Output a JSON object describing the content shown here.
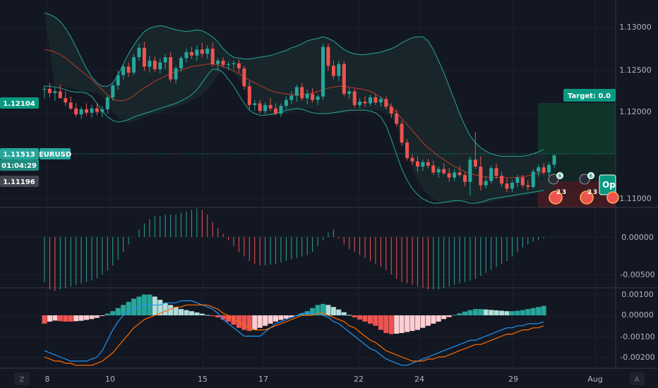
{
  "chart_data": {
    "type": "candlestick",
    "symbol": "EURUSD",
    "price_axis_labels": [
      "1.13000",
      "1.12500",
      "1.12000",
      "1.11000"
    ],
    "macd_histogram_axis_labels": [
      "0.00000",
      "-0.00500"
    ],
    "macd_axis_labels": [
      "0.00100",
      "0.00000",
      "-0.00100",
      "-0.00200"
    ],
    "x_axis_labels": [
      "8",
      "10",
      "15",
      "17",
      "22",
      "24",
      "29",
      "Aug"
    ],
    "corner_labels": {
      "left": "Z",
      "right": "A"
    },
    "price_ylim": [
      1.109,
      1.134
    ],
    "price_tags": {
      "target_level": "1.12104",
      "current_price": "1.11513",
      "countdown": "01:04:29",
      "stop_level": "1.11196"
    },
    "annotations": {
      "target_label": "Target: 0.0",
      "open_label": "Op",
      "event_counts": [
        "6",
        "6",
        "2",
        "3",
        "2",
        "3"
      ]
    },
    "colors": {
      "background": "#131722",
      "up_candle": "#26a69a",
      "down_candle": "#ef5350",
      "band": "#26a69a",
      "band_fill": "#1a2a2e",
      "basis": "#c0392b",
      "macd_line": "#2196f3",
      "signal_line": "#ff6d00",
      "target_tag": "#089981",
      "price_tag": "#26a69a",
      "stop_tag": "#434651"
    },
    "candles_ohlc": [
      [
        1.1228,
        1.1233,
        1.1218,
        1.1229
      ],
      [
        1.1229,
        1.1236,
        1.1219,
        1.1224
      ],
      [
        1.1224,
        1.123,
        1.1215,
        1.1226
      ],
      [
        1.1226,
        1.1234,
        1.1218,
        1.1218
      ],
      [
        1.1218,
        1.1226,
        1.1209,
        1.1213
      ],
      [
        1.1213,
        1.122,
        1.1204,
        1.1206
      ],
      [
        1.1206,
        1.1212,
        1.1196,
        1.1199
      ],
      [
        1.1199,
        1.1208,
        1.1194,
        1.1205
      ],
      [
        1.1205,
        1.1212,
        1.1197,
        1.1201
      ],
      [
        1.1201,
        1.121,
        1.1195,
        1.1206
      ],
      [
        1.1206,
        1.1212,
        1.1198,
        1.1202
      ],
      [
        1.1202,
        1.1209,
        1.1196,
        1.1205
      ],
      [
        1.1205,
        1.1221,
        1.12,
        1.1219
      ],
      [
        1.1219,
        1.1235,
        1.1215,
        1.1233
      ],
      [
        1.1233,
        1.125,
        1.1228,
        1.1245
      ],
      [
        1.1245,
        1.1258,
        1.124,
        1.1255
      ],
      [
        1.1255,
        1.126,
        1.1243,
        1.1248
      ],
      [
        1.1248,
        1.127,
        1.1245,
        1.1266
      ],
      [
        1.1266,
        1.1282,
        1.1262,
        1.1277
      ],
      [
        1.1277,
        1.1284,
        1.125,
        1.1255
      ],
      [
        1.1255,
        1.1268,
        1.1248,
        1.1262
      ],
      [
        1.1262,
        1.1267,
        1.1249,
        1.1252
      ],
      [
        1.1252,
        1.1265,
        1.1247,
        1.126
      ],
      [
        1.126,
        1.127,
        1.1252,
        1.1266
      ],
      [
        1.1266,
        1.1272,
        1.1237,
        1.124
      ],
      [
        1.124,
        1.1256,
        1.1235,
        1.1253
      ],
      [
        1.1253,
        1.1268,
        1.1249,
        1.1265
      ],
      [
        1.1265,
        1.1276,
        1.126,
        1.1272
      ],
      [
        1.1272,
        1.1278,
        1.1264,
        1.1268
      ],
      [
        1.1268,
        1.128,
        1.1262,
        1.1275
      ],
      [
        1.1275,
        1.1283,
        1.1266,
        1.127
      ],
      [
        1.127,
        1.128,
        1.1264,
        1.1276
      ],
      [
        1.1276,
        1.1283,
        1.1255,
        1.1258
      ],
      [
        1.1258,
        1.1265,
        1.125,
        1.1262
      ],
      [
        1.1262,
        1.1266,
        1.1254,
        1.1257
      ],
      [
        1.1257,
        1.1261,
        1.1251,
        1.1258
      ],
      [
        1.1258,
        1.1262,
        1.1252,
        1.1259
      ],
      [
        1.1259,
        1.1263,
        1.1248,
        1.1253
      ],
      [
        1.1253,
        1.1256,
        1.1228,
        1.1232
      ],
      [
        1.1232,
        1.1238,
        1.1205,
        1.121
      ],
      [
        1.121,
        1.1216,
        1.1203,
        1.1212
      ],
      [
        1.1212,
        1.1216,
        1.12,
        1.1203
      ],
      [
        1.1203,
        1.1213,
        1.1199,
        1.121
      ],
      [
        1.121,
        1.1218,
        1.1203,
        1.1206
      ],
      [
        1.1206,
        1.1212,
        1.1198,
        1.12
      ],
      [
        1.12,
        1.1212,
        1.1196,
        1.1209
      ],
      [
        1.1209,
        1.122,
        1.1205,
        1.1216
      ],
      [
        1.1216,
        1.1226,
        1.1211,
        1.1221
      ],
      [
        1.1221,
        1.1234,
        1.1214,
        1.1231
      ],
      [
        1.1231,
        1.1236,
        1.1215,
        1.1218
      ],
      [
        1.1218,
        1.1228,
        1.1211,
        1.1223
      ],
      [
        1.1223,
        1.123,
        1.1213,
        1.1216
      ],
      [
        1.1216,
        1.1222,
        1.121,
        1.122
      ],
      [
        1.122,
        1.1282,
        1.1216,
        1.1278
      ],
      [
        1.1278,
        1.1282,
        1.125,
        1.1256
      ],
      [
        1.1256,
        1.1262,
        1.124,
        1.1244
      ],
      [
        1.1244,
        1.1262,
        1.1238,
        1.1258
      ],
      [
        1.1258,
        1.1261,
        1.122,
        1.1223
      ],
      [
        1.1223,
        1.123,
        1.1217,
        1.1226
      ],
      [
        1.1226,
        1.1229,
        1.1207,
        1.121
      ],
      [
        1.121,
        1.1218,
        1.1206,
        1.1214
      ],
      [
        1.1214,
        1.122,
        1.1208,
        1.1212
      ],
      [
        1.1212,
        1.1222,
        1.1209,
        1.1219
      ],
      [
        1.1219,
        1.1223,
        1.121,
        1.1213
      ],
      [
        1.1213,
        1.122,
        1.1208,
        1.1217
      ],
      [
        1.1217,
        1.122,
        1.1205,
        1.1208
      ],
      [
        1.1208,
        1.1212,
        1.1195,
        1.12
      ],
      [
        1.12,
        1.1205,
        1.1185,
        1.1188
      ],
      [
        1.1188,
        1.1192,
        1.1162,
        1.1166
      ],
      [
        1.1166,
        1.117,
        1.1145,
        1.1148
      ],
      [
        1.1148,
        1.1152,
        1.114,
        1.1144
      ],
      [
        1.1144,
        1.115,
        1.1132,
        1.1138
      ],
      [
        1.1138,
        1.1146,
        1.1133,
        1.1143
      ],
      [
        1.1143,
        1.1147,
        1.1136,
        1.1139
      ],
      [
        1.1139,
        1.1145,
        1.1128,
        1.1131
      ],
      [
        1.1131,
        1.1138,
        1.1125,
        1.1135
      ],
      [
        1.1135,
        1.1142,
        1.1128,
        1.113
      ],
      [
        1.113,
        1.1136,
        1.112,
        1.1125
      ],
      [
        1.1125,
        1.1135,
        1.1121,
        1.1131
      ],
      [
        1.1131,
        1.1139,
        1.1126,
        1.1128
      ],
      [
        1.1128,
        1.1131,
        1.1115,
        1.112
      ],
      [
        1.112,
        1.115,
        1.1104,
        1.1146
      ],
      [
        1.1146,
        1.1178,
        1.1135,
        1.1138
      ],
      [
        1.1138,
        1.115,
        1.111,
        1.1116
      ],
      [
        1.1116,
        1.1126,
        1.1112,
        1.1121
      ],
      [
        1.1121,
        1.1139,
        1.1118,
        1.1136
      ],
      [
        1.1136,
        1.1141,
        1.1124,
        1.1127
      ],
      [
        1.1127,
        1.1132,
        1.1114,
        1.1118
      ],
      [
        1.1118,
        1.1124,
        1.1108,
        1.1112
      ],
      [
        1.1112,
        1.1122,
        1.1108,
        1.1119
      ],
      [
        1.1119,
        1.1128,
        1.1114,
        1.1125
      ],
      [
        1.1125,
        1.1128,
        1.1113,
        1.1116
      ],
      [
        1.1116,
        1.1122,
        1.111,
        1.1114
      ],
      [
        1.1114,
        1.1135,
        1.1112,
        1.1132
      ],
      [
        1.1132,
        1.114,
        1.1126,
        1.1137
      ],
      [
        1.1137,
        1.1142,
        1.1128,
        1.1131
      ],
      [
        1.1131,
        1.1143,
        1.1127,
        1.114
      ],
      [
        1.114,
        1.1152,
        1.1136,
        1.1151
      ]
    ],
    "bollinger_upper": [
      1.1318,
      1.1316,
      1.1313,
      1.1308,
      1.13,
      1.129,
      1.1278,
      1.1265,
      1.1253,
      1.1243,
      1.1236,
      1.1232,
      1.1232,
      1.1236,
      1.1245,
      1.1258,
      1.127,
      1.128,
      1.1289,
      1.1296,
      1.13,
      1.1302,
      1.1303,
      1.1302,
      1.13,
      1.1298,
      1.1297,
      1.1296,
      1.1297,
      1.1298,
      1.1297,
      1.1294,
      1.129,
      1.1284,
      1.1276,
      1.127,
      1.1266,
      1.1265,
      1.1264,
      1.1264,
      1.1265,
      1.1266,
      1.1267,
      1.1268,
      1.127,
      1.1272,
      1.1274,
      1.1277,
      1.1279,
      1.1282,
      1.1285,
      1.1287,
      1.1288,
      1.129,
      1.1288,
      1.1285,
      1.128,
      1.1275,
      1.1272,
      1.127,
      1.1269,
      1.1269,
      1.127,
      1.1271,
      1.1272,
      1.1274,
      1.1276,
      1.1279,
      1.1283,
      1.1286,
      1.1289,
      1.129,
      1.129,
      1.1285,
      1.1275,
      1.1262,
      1.1248,
      1.1232,
      1.1216,
      1.12,
      1.1186,
      1.1174,
      1.1166,
      1.116,
      1.1156,
      1.1153,
      1.1151,
      1.115,
      1.115,
      1.115,
      1.115,
      1.115,
      1.1151,
      1.1153,
      1.1155,
      1.1158
    ],
    "bollinger_basis": [
      1.1275,
      1.1274,
      1.1272,
      1.1269,
      1.1265,
      1.126,
      1.1255,
      1.125,
      1.1245,
      1.124,
      1.1234,
      1.1228,
      1.1222,
      1.1217,
      1.1215,
      1.1215,
      1.1217,
      1.1221,
      1.1226,
      1.123,
      1.1234,
      1.1238,
      1.1241,
      1.1244,
      1.1247,
      1.1249,
      1.1251,
      1.1253,
      1.1255,
      1.1256,
      1.1257,
      1.1258,
      1.1258,
      1.1257,
      1.1255,
      1.1253,
      1.125,
      1.1247,
      1.1243,
      1.1239,
      1.1236,
      1.1233,
      1.123,
      1.1227,
      1.1225,
      1.1224,
      1.1223,
      1.1222,
      1.1222,
      1.1222,
      1.1223,
      1.1224,
      1.1226,
      1.1228,
      1.123,
      1.1231,
      1.1232,
      1.1232,
      1.1231,
      1.123,
      1.1229,
      1.1228,
      1.1226,
      1.1223,
      1.1219,
      1.1214,
      1.1208,
      1.1201,
      1.1194,
      1.1187,
      1.118,
      1.1173,
      1.1166,
      1.116,
      1.1155,
      1.115,
      1.1146,
      1.1142,
      1.1138,
      1.1135,
      1.1132,
      1.113,
      1.1128,
      1.1127,
      1.1126,
      1.1125,
      1.1125,
      1.1125,
      1.1125,
      1.1125,
      1.1125,
      1.1126,
      1.1127,
      1.1129,
      1.113,
      1.1132
    ],
    "bollinger_lower": [
      1.1232,
      1.1232,
      1.1231,
      1.123,
      1.1228,
      1.1226,
      1.1225,
      1.1225,
      1.1224,
      1.122,
      1.1212,
      1.1203,
      1.1196,
      1.1192,
      1.119,
      1.1191,
      1.1193,
      1.1196,
      1.1198,
      1.12,
      1.1202,
      1.1204,
      1.1206,
      1.1208,
      1.121,
      1.1212,
      1.1215,
      1.1218,
      1.1222,
      1.1228,
      1.1236,
      1.1245,
      1.1252,
      1.1252,
      1.1248,
      1.124,
      1.1232,
      1.1222,
      1.1212,
      1.1204,
      1.12,
      1.1198,
      1.1198,
      1.1199,
      1.12,
      1.1202,
      1.1204,
      1.1205,
      1.1206,
      1.1205,
      1.1203,
      1.1201,
      1.12,
      1.12,
      1.12,
      1.1201,
      1.1202,
      1.1203,
      1.1204,
      1.1204,
      1.1204,
      1.1204,
      1.1203,
      1.1201,
      1.1196,
      1.1186,
      1.117,
      1.1152,
      1.1135,
      1.1122,
      1.1112,
      1.1105,
      1.11,
      1.1097,
      1.1095,
      1.1095,
      1.1096,
      1.1097,
      1.1098,
      1.1098,
      1.1097,
      1.1095,
      1.1095,
      1.1096,
      1.1098,
      1.11,
      1.1101,
      1.1102,
      1.1103,
      1.1104,
      1.1105,
      1.1106,
      1.1107,
      1.1108,
      1.1109,
      1.111
    ],
    "oscillator_histogram": [
      -0.006,
      -0.007,
      -0.0072,
      -0.007,
      -0.0068,
      -0.0066,
      -0.0064,
      -0.0062,
      -0.006,
      -0.0058,
      -0.0055,
      -0.005,
      -0.0045,
      -0.0038,
      -0.003,
      -0.002,
      -0.001,
      0.0,
      0.001,
      0.0018,
      0.0024,
      0.0028,
      0.0028,
      0.003,
      0.003,
      0.003,
      0.0032,
      0.0034,
      0.0036,
      0.0038,
      0.0036,
      0.003,
      0.002,
      0.0012,
      0.0004,
      -0.0004,
      -0.0012,
      -0.002,
      -0.0026,
      -0.0032,
      -0.0036,
      -0.0038,
      -0.0038,
      -0.0037,
      -0.0036,
      -0.0034,
      -0.0032,
      -0.003,
      -0.0028,
      -0.0026,
      -0.0024,
      -0.002,
      -0.0012,
      -0.0004,
      0.0006,
      0.001,
      -0.0002,
      -0.001,
      -0.0016,
      -0.002,
      -0.0024,
      -0.0028,
      -0.0032,
      -0.0036,
      -0.004,
      -0.0044,
      -0.005,
      -0.0056,
      -0.006,
      -0.0062,
      -0.0064,
      -0.0066,
      -0.0068,
      -0.007,
      -0.007,
      -0.007,
      -0.0068,
      -0.0066,
      -0.0064,
      -0.0062,
      -0.006,
      -0.0058,
      -0.0056,
      -0.0052,
      -0.0048,
      -0.0044,
      -0.004,
      -0.0036,
      -0.0032,
      -0.0026,
      -0.002,
      -0.0014,
      -0.001,
      -0.0006,
      -0.0004,
      -0.0002
    ],
    "macd_histogram": [
      -0.0004,
      -0.0003,
      -0.00025,
      -0.00028,
      -0.0003,
      -0.0003,
      -0.00028,
      -0.00026,
      -0.00022,
      -0.00018,
      -0.00012,
      -2e-05,
      8e-05,
      0.0002,
      0.00035,
      0.0005,
      0.00065,
      0.0008,
      0.0009,
      0.001,
      0.001,
      0.0009,
      0.00075,
      0.0006,
      0.0005,
      0.0004,
      0.0003,
      0.00025,
      0.0002,
      0.00014,
      8e-05,
      2e-05,
      -4e-05,
      -0.0001,
      -0.0002,
      -0.0003,
      -0.00045,
      -0.0006,
      -0.0007,
      -0.00075,
      -0.0007,
      -0.0006,
      -0.0005,
      -0.0004,
      -0.0003,
      -0.00022,
      -0.00016,
      -0.0001,
      0.0,
      0.0001,
      0.0002,
      0.00035,
      0.0005,
      0.00055,
      0.0005,
      0.0004,
      0.00028,
      0.00015,
      2e-05,
      -0.0001,
      -0.0002,
      -0.0003,
      -0.0004,
      -0.0005,
      -0.0007,
      -0.00085,
      -0.0009,
      -0.00088,
      -0.00085,
      -0.0008,
      -0.00075,
      -0.0007,
      -0.0006,
      -0.0005,
      -0.0004,
      -0.0003,
      -0.00018,
      -8e-05,
      2e-05,
      0.0001,
      0.00018,
      0.00025,
      0.0003,
      0.0003,
      0.00028,
      0.00026,
      0.00024,
      0.00022,
      0.0002,
      0.0002,
      0.00022,
      0.00025,
      0.0003,
      0.00035,
      0.0004,
      0.00045
    ],
    "macd_line": [
      -0.0017,
      -0.0018,
      -0.0019,
      -0.002,
      -0.0021,
      -0.0022,
      -0.0022,
      -0.0022,
      -0.0022,
      -0.0021,
      -0.002,
      -0.0017,
      -0.0012,
      -0.0007,
      -0.0003,
      0.0,
      0.0002,
      0.0003,
      0.0004,
      0.0005,
      0.0005,
      0.0005,
      0.0005,
      0.0006,
      0.0006,
      0.0006,
      0.0007,
      0.0007,
      0.0007,
      0.0006,
      0.0005,
      0.0004,
      0.0003,
      0.0001,
      -0.0002,
      -0.0004,
      -0.0006,
      -0.0008,
      -0.001,
      -0.001,
      -0.001,
      -0.001,
      -0.0008,
      -0.0006,
      -0.0004,
      -0.0003,
      -0.0002,
      -0.0001,
      0.0,
      0.0001,
      0.0001,
      0.0001,
      0.0001,
      0.0,
      -0.0001,
      -0.0003,
      -0.0004,
      -0.0006,
      -0.0008,
      -0.001,
      -0.0012,
      -0.0014,
      -0.0016,
      -0.0017,
      -0.0019,
      -0.0021,
      -0.0022,
      -0.0023,
      -0.0024,
      -0.0024,
      -0.0023,
      -0.0022,
      -0.0021,
      -0.002,
      -0.0019,
      -0.0018,
      -0.0017,
      -0.0016,
      -0.0015,
      -0.0014,
      -0.0013,
      -0.0012,
      -0.0012,
      -0.0011,
      -0.001,
      -0.0009,
      -0.0008,
      -0.0007,
      -0.0006,
      -0.0006,
      -0.0005,
      -0.0005,
      -0.0004,
      -0.0004,
      -0.0004,
      -0.0003
    ],
    "signal_line": [
      -0.002,
      -0.0021,
      -0.0022,
      -0.0022,
      -0.0023,
      -0.0023,
      -0.0024,
      -0.0024,
      -0.0024,
      -0.0024,
      -0.0023,
      -0.0022,
      -0.002,
      -0.0018,
      -0.0015,
      -0.0012,
      -0.0009,
      -0.0006,
      -0.0004,
      -0.0002,
      -0.0001,
      0.0,
      0.0001,
      0.0002,
      0.0003,
      0.0004,
      0.0004,
      0.0005,
      0.0005,
      0.0005,
      0.0005,
      0.0005,
      0.0004,
      0.0003,
      0.0001,
      0.0,
      -0.0002,
      -0.0003,
      -0.0005,
      -0.0006,
      -0.0007,
      -0.0007,
      -0.0007,
      -0.0006,
      -0.0005,
      -0.0004,
      -0.0003,
      -0.0002,
      -0.0001,
      0.0,
      0.0,
      0.0,
      0.0001,
      0.0001,
      0.0,
      -0.0001,
      -0.0002,
      -0.0003,
      -0.0005,
      -0.0006,
      -0.0008,
      -0.001,
      -0.0012,
      -0.0013,
      -0.0015,
      -0.0017,
      -0.0018,
      -0.0019,
      -0.002,
      -0.0021,
      -0.0022,
      -0.0022,
      -0.0022,
      -0.0021,
      -0.0021,
      -0.002,
      -0.002,
      -0.0019,
      -0.0018,
      -0.0017,
      -0.0016,
      -0.0015,
      -0.0014,
      -0.0014,
      -0.0013,
      -0.0012,
      -0.0011,
      -0.001,
      -0.0009,
      -0.0009,
      -0.0008,
      -0.0007,
      -0.0007,
      -0.0006,
      -0.0006,
      -0.0005
    ]
  }
}
